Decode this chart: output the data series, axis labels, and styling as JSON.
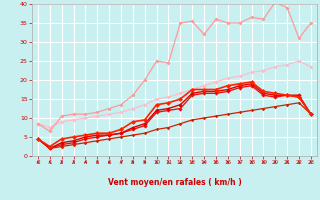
{
  "bg_color": "#c8f0f0",
  "grid_color": "#ffffff",
  "xlabel": "Vent moyen/en rafales ( km/h )",
  "xlim": [
    -0.5,
    23.5
  ],
  "ylim": [
    0,
    40
  ],
  "xticks": [
    0,
    1,
    2,
    3,
    4,
    5,
    6,
    7,
    8,
    9,
    10,
    11,
    12,
    13,
    14,
    15,
    16,
    17,
    18,
    19,
    20,
    21,
    22,
    23
  ],
  "yticks": [
    0,
    5,
    10,
    15,
    20,
    25,
    30,
    35,
    40
  ],
  "tick_color": "#cc0000",
  "label_color": "#cc0000",
  "curves": [
    {
      "name": "lightest_pink_diagonal",
      "color": "#ffbbcc",
      "lw": 0.9,
      "ms": 2.0,
      "alpha": 1.0,
      "x": [
        0,
        1,
        2,
        3,
        4,
        5,
        6,
        7,
        8,
        9,
        10,
        11,
        12,
        13,
        14,
        15,
        16,
        17,
        18,
        19,
        20,
        21,
        22,
        23
      ],
      "y": [
        8.5,
        7.5,
        9.0,
        9.5,
        10.0,
        10.5,
        11.0,
        11.5,
        12.5,
        13.5,
        15.0,
        15.5,
        16.5,
        17.5,
        18.5,
        19.5,
        20.5,
        21.0,
        22.0,
        22.5,
        23.5,
        24.0,
        25.0,
        23.5
      ]
    },
    {
      "name": "light_pink_jagged",
      "color": "#ff9999",
      "lw": 0.9,
      "ms": 2.0,
      "alpha": 1.0,
      "x": [
        0,
        1,
        2,
        3,
        4,
        5,
        6,
        7,
        8,
        9,
        10,
        11,
        12,
        13,
        14,
        15,
        16,
        17,
        18,
        19,
        20,
        21,
        22,
        23
      ],
      "y": [
        8.5,
        6.5,
        10.5,
        11.0,
        11.0,
        11.5,
        12.5,
        13.5,
        16.0,
        20.0,
        25.0,
        24.5,
        35.0,
        35.5,
        32.0,
        36.0,
        35.0,
        35.0,
        36.5,
        36.0,
        40.5,
        39.0,
        31.0,
        35.0
      ]
    },
    {
      "name": "red_line_bottom_flat",
      "color": "#cc2200",
      "lw": 0.9,
      "ms": 1.8,
      "alpha": 1.0,
      "x": [
        0,
        1,
        2,
        3,
        4,
        5,
        6,
        7,
        8,
        9,
        10,
        11,
        12,
        13,
        14,
        15,
        16,
        17,
        18,
        19,
        20,
        21,
        22,
        23
      ],
      "y": [
        4.5,
        2.0,
        2.5,
        3.0,
        3.5,
        4.0,
        4.5,
        5.0,
        5.5,
        6.0,
        7.0,
        7.5,
        8.5,
        9.5,
        10.0,
        10.5,
        11.0,
        11.5,
        12.0,
        12.5,
        13.0,
        13.5,
        14.0,
        11.0
      ]
    },
    {
      "name": "red_cluster_1",
      "color": "#ee1111",
      "lw": 1.0,
      "ms": 2.2,
      "alpha": 1.0,
      "x": [
        0,
        1,
        2,
        3,
        4,
        5,
        6,
        7,
        8,
        9,
        10,
        11,
        12,
        13,
        14,
        15,
        16,
        17,
        18,
        19,
        20,
        21,
        22,
        23
      ],
      "y": [
        4.5,
        2.0,
        3.0,
        3.5,
        4.5,
        5.0,
        5.5,
        6.0,
        7.0,
        8.0,
        11.5,
        12.0,
        12.5,
        16.0,
        16.5,
        16.5,
        17.0,
        18.0,
        18.5,
        16.0,
        15.5,
        16.0,
        15.5,
        11.0
      ]
    },
    {
      "name": "red_cluster_2",
      "color": "#dd0000",
      "lw": 1.0,
      "ms": 2.2,
      "alpha": 1.0,
      "x": [
        0,
        1,
        2,
        3,
        4,
        5,
        6,
        7,
        8,
        9,
        10,
        11,
        12,
        13,
        14,
        15,
        16,
        17,
        18,
        19,
        20,
        21,
        22,
        23
      ],
      "y": [
        4.5,
        2.0,
        3.5,
        4.0,
        5.0,
        5.5,
        5.5,
        6.0,
        7.5,
        8.5,
        12.0,
        12.5,
        13.5,
        16.5,
        17.0,
        17.0,
        17.5,
        18.5,
        19.0,
        16.5,
        16.0,
        16.0,
        16.0,
        11.0
      ]
    },
    {
      "name": "red_cluster_3_top",
      "color": "#ff2200",
      "lw": 1.2,
      "ms": 2.5,
      "alpha": 1.0,
      "x": [
        0,
        1,
        2,
        3,
        4,
        5,
        6,
        7,
        8,
        9,
        10,
        11,
        12,
        13,
        14,
        15,
        16,
        17,
        18,
        19,
        20,
        21,
        22,
        23
      ],
      "y": [
        4.5,
        2.5,
        4.5,
        5.0,
        5.5,
        6.0,
        6.0,
        7.0,
        9.0,
        9.5,
        13.5,
        14.0,
        15.0,
        17.5,
        17.5,
        17.5,
        18.5,
        19.0,
        19.5,
        17.0,
        16.5,
        16.0,
        15.5,
        11.0
      ]
    }
  ]
}
